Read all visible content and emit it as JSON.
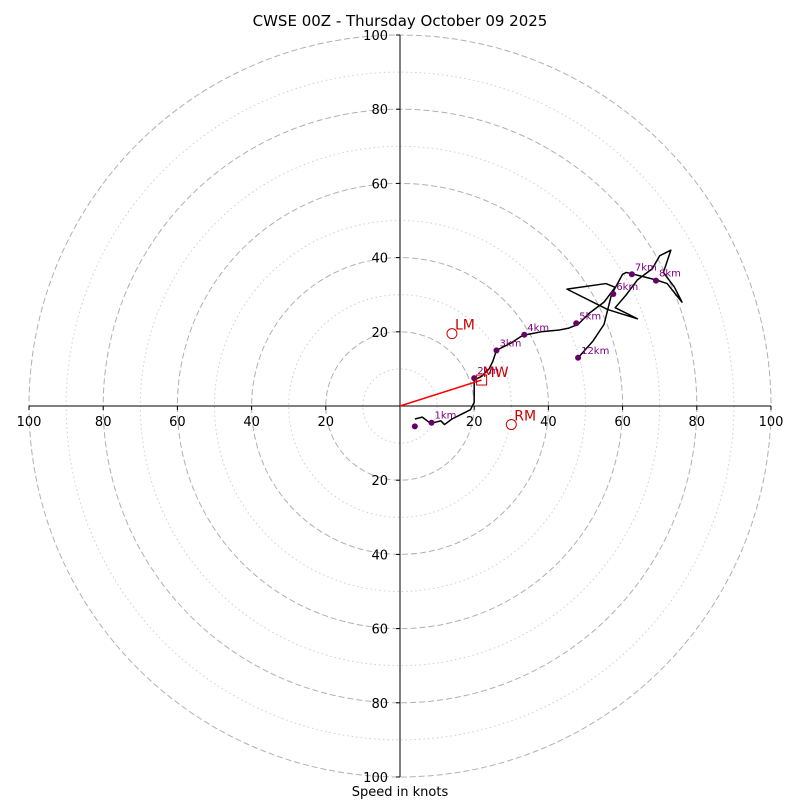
{
  "chart_data": {
    "type": "hodograph",
    "title": "CWSE 00Z - Thursday October 09 2025",
    "xlabel": "Speed in knots",
    "max_speed": 100,
    "ring_major": [
      20,
      40,
      60,
      80,
      100
    ],
    "ring_minor": [
      10,
      30,
      50,
      70,
      90
    ],
    "axis_ticks": [
      {
        "value": 100,
        "label": "100"
      },
      {
        "value": 80,
        "label": "80"
      },
      {
        "value": 60,
        "label": "60"
      },
      {
        "value": 40,
        "label": "40"
      },
      {
        "value": 20,
        "label": "20"
      }
    ],
    "x_ticks": [
      {
        "u": -100,
        "label": "100"
      },
      {
        "u": -80,
        "label": "80"
      },
      {
        "u": -60,
        "label": "60"
      },
      {
        "u": -40,
        "label": "40"
      },
      {
        "u": -20,
        "label": "20"
      },
      {
        "u": 20,
        "label": "20"
      },
      {
        "u": 40,
        "label": "40"
      },
      {
        "u": 60,
        "label": "60"
      },
      {
        "u": 80,
        "label": "80"
      },
      {
        "u": 100,
        "label": "100"
      }
    ],
    "y_ticks": [
      {
        "v": 100,
        "label": "100"
      },
      {
        "v": 80,
        "label": "80"
      },
      {
        "v": 60,
        "label": "60"
      },
      {
        "v": 40,
        "label": "40"
      },
      {
        "v": 20,
        "label": "20"
      },
      {
        "v": -20,
        "label": "20"
      },
      {
        "v": -40,
        "label": "40"
      },
      {
        "v": -60,
        "label": "60"
      },
      {
        "v": -80,
        "label": "80"
      },
      {
        "v": -100,
        "label": "100"
      }
    ],
    "trace": [
      [
        4,
        -3.5
      ],
      [
        6,
        -3
      ],
      [
        8,
        -4.5
      ],
      [
        9,
        -4.5
      ],
      [
        11,
        -4
      ],
      [
        12,
        -5
      ],
      [
        14,
        -3.5
      ],
      [
        17,
        -2
      ],
      [
        19,
        -1
      ],
      [
        20,
        1
      ],
      [
        20,
        4
      ],
      [
        20,
        7
      ],
      [
        22,
        8
      ],
      [
        24,
        10
      ],
      [
        25,
        12
      ],
      [
        26,
        15
      ],
      [
        28,
        16
      ],
      [
        30,
        17
      ],
      [
        33,
        19
      ],
      [
        38,
        20
      ],
      [
        43,
        20.5
      ],
      [
        45.5,
        21
      ],
      [
        48,
        22
      ],
      [
        51,
        25
      ],
      [
        55,
        28
      ],
      [
        58,
        32
      ],
      [
        55.5,
        33
      ],
      [
        45,
        31.5
      ],
      [
        56,
        26
      ],
      [
        64,
        23.5
      ],
      [
        58,
        26.5
      ],
      [
        61,
        30
      ],
      [
        64,
        34
      ],
      [
        68,
        37
      ],
      [
        70,
        40.5
      ],
      [
        73,
        42
      ],
      [
        71,
        36
      ],
      [
        74,
        32
      ],
      [
        76,
        28
      ],
      [
        72,
        33
      ],
      [
        69,
        34
      ],
      [
        65,
        35
      ],
      [
        63,
        35.5
      ],
      [
        61,
        36
      ],
      [
        60,
        35.5
      ],
      [
        57,
        30
      ],
      [
        55,
        22
      ],
      [
        52,
        17.5
      ],
      [
        48,
        13
      ]
    ],
    "height_markers": [
      {
        "label": "1km",
        "u": 8.5,
        "v": -4.5
      },
      {
        "label": "2km",
        "u": 20,
        "v": 7.5
      },
      {
        "label": "3km",
        "u": 26,
        "v": 15
      },
      {
        "label": "4km",
        "u": 33.5,
        "v": 19.2
      },
      {
        "label": "5km",
        "u": 47.5,
        "v": 22.3
      },
      {
        "label": "6km",
        "u": 57.5,
        "v": 30.2
      },
      {
        "label": "7km",
        "u": 62.5,
        "v": 35.5
      },
      {
        "label": "8km",
        "u": 69,
        "v": 33.8
      },
      {
        "label": "12km",
        "u": 48,
        "v": 13
      }
    ],
    "surface_point": {
      "u": 4,
      "v": -5.5
    },
    "storm_motion": {
      "LM": {
        "label": "LM",
        "u": 14,
        "v": 19.5
      },
      "MW": {
        "label": "MW",
        "u": 22,
        "v": 7
      },
      "RM": {
        "label": "RM",
        "u": 30,
        "v": -5
      }
    },
    "colors": {
      "trace": "#000000",
      "height_marker": "#660066",
      "height_label": "#800080",
      "storm_motion": "#cc0000",
      "mean_wind_vector": "#ff0000",
      "ring": "#b0b0b0",
      "ring_minor": "#cfcfcf",
      "axis": "#000000"
    }
  }
}
